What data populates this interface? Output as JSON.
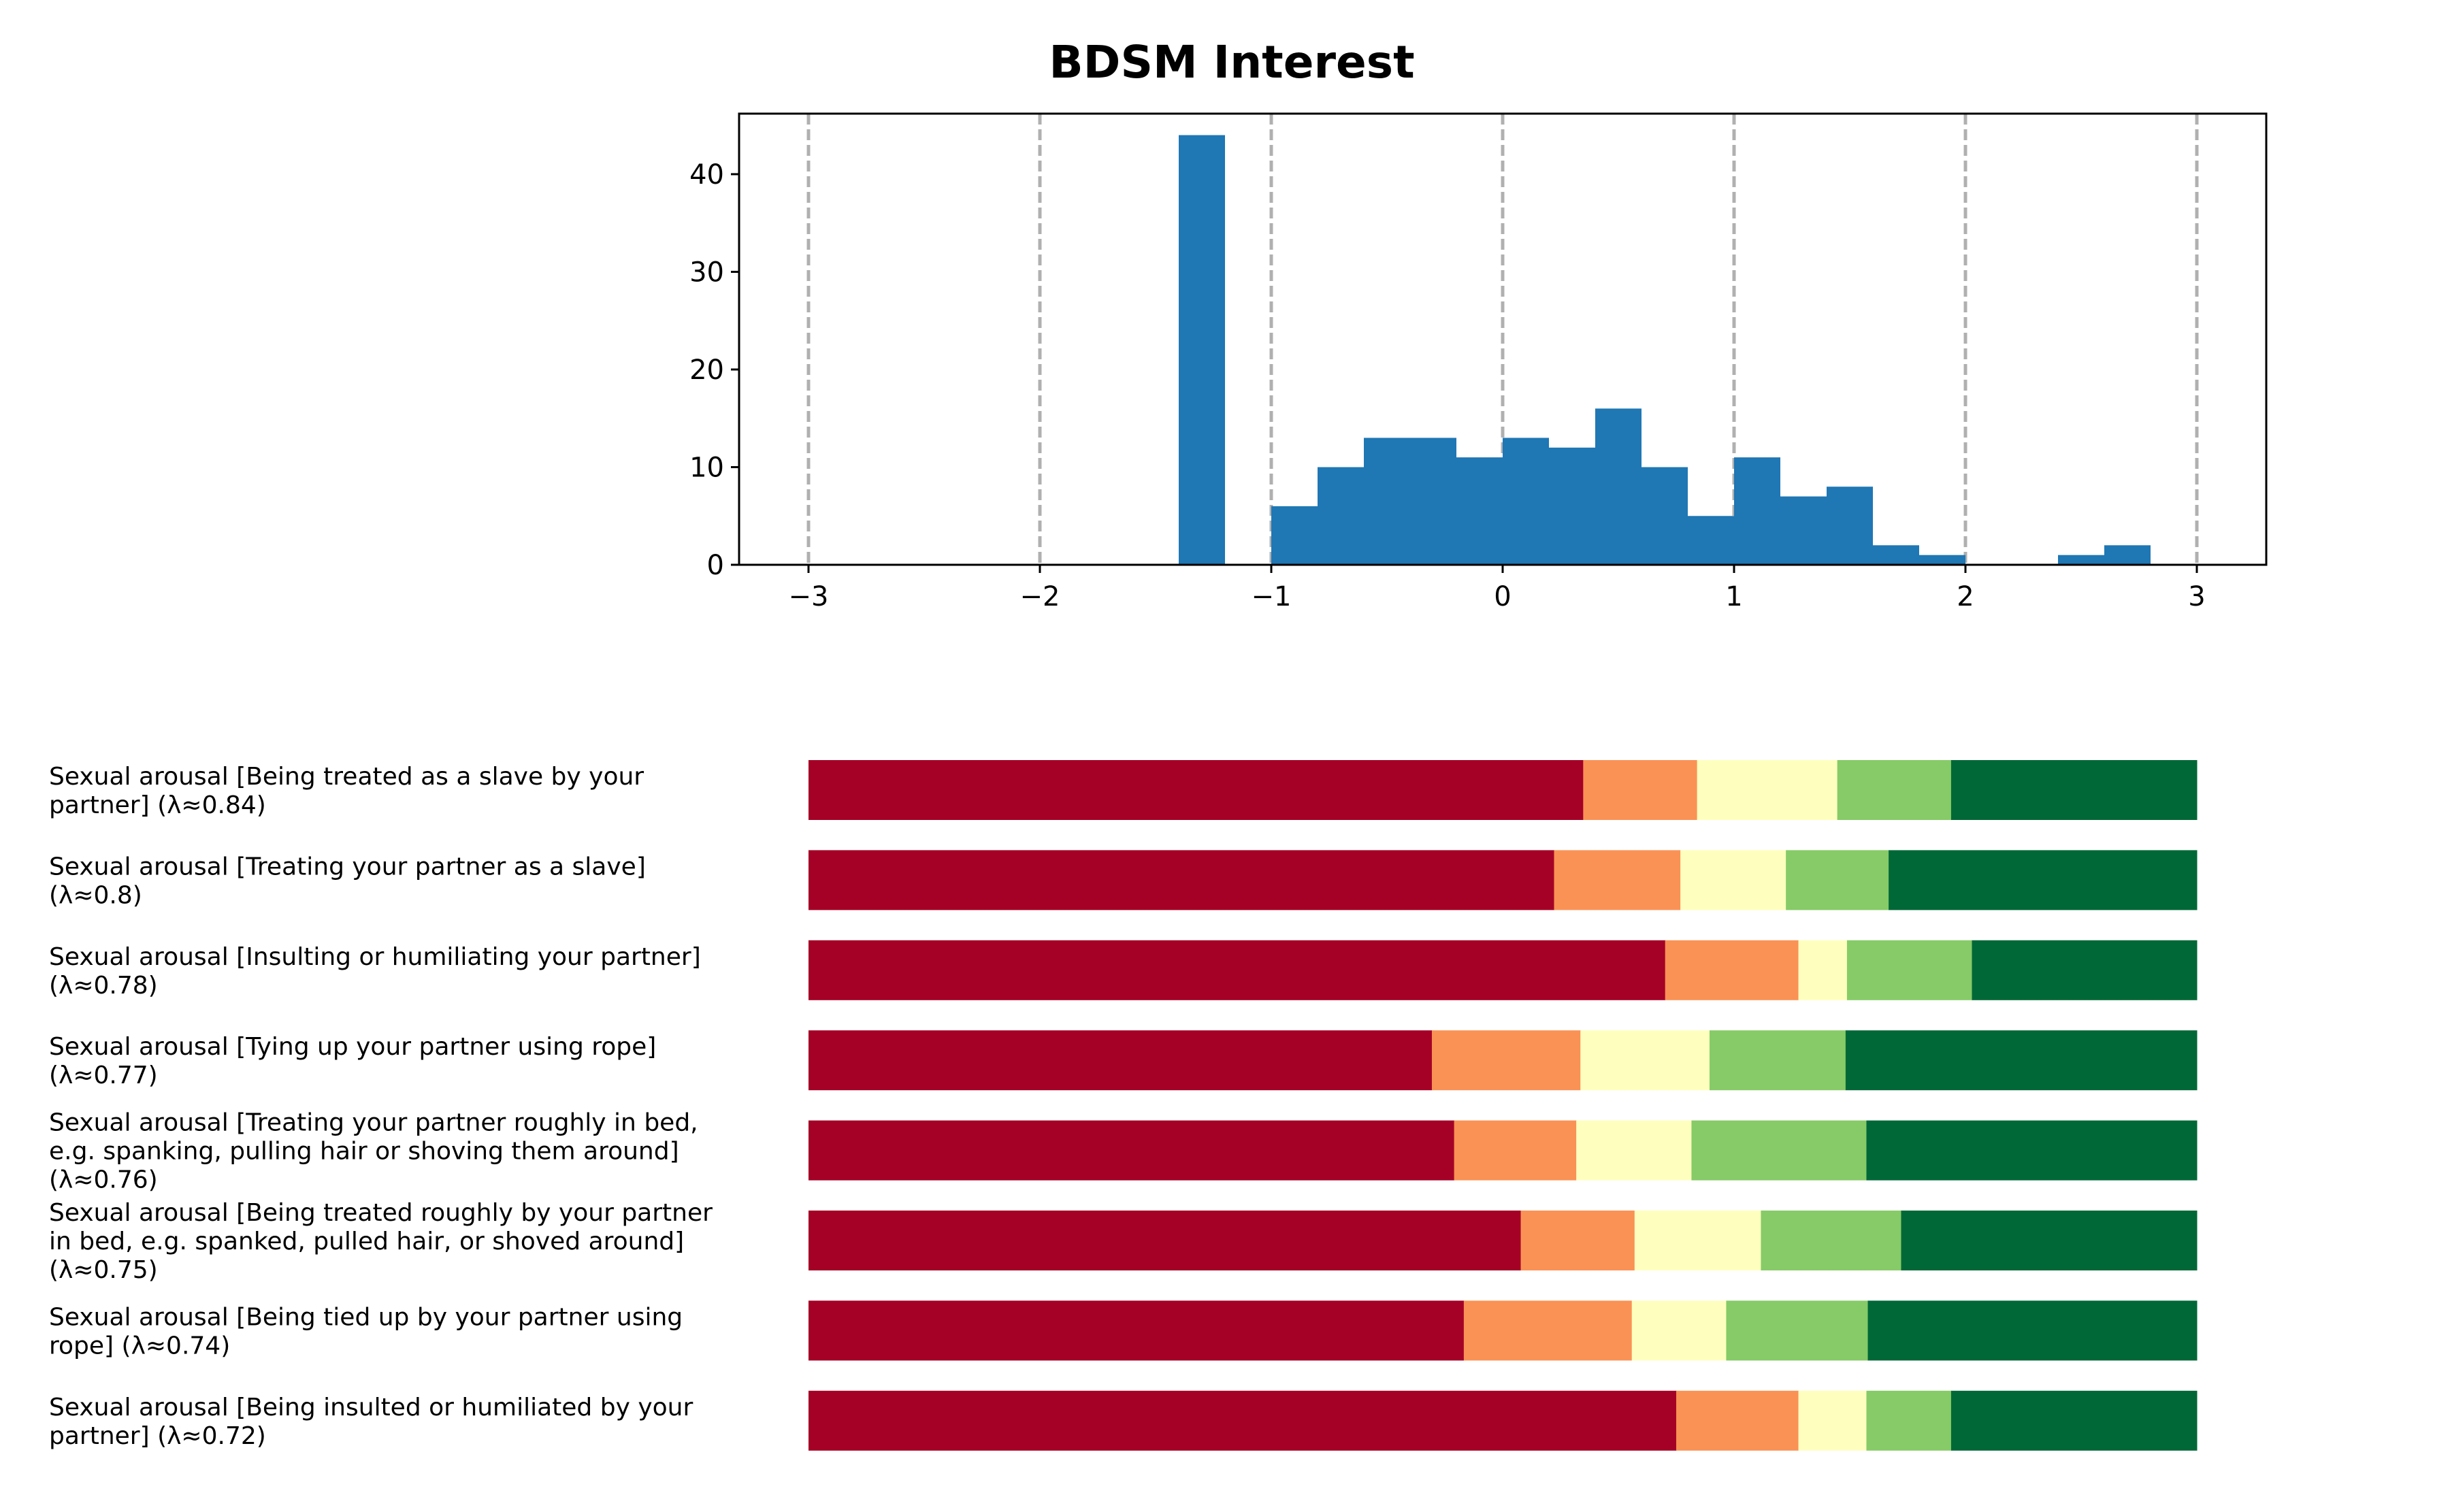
{
  "chart_data": [
    {
      "type": "bar",
      "title": "BDSM Interest",
      "xlabel": "",
      "ylabel": "",
      "xlim": [
        -3.3,
        3.3
      ],
      "ylim": [
        0,
        46.2
      ],
      "xticks": [
        -3,
        -2,
        -1,
        0,
        1,
        2,
        3
      ],
      "xtick_labels": [
        "−3",
        "−2",
        "−1",
        "0",
        "1",
        "2",
        "3"
      ],
      "yticks": [
        0,
        10,
        20,
        30,
        40
      ],
      "ytick_labels": [
        "0",
        "10",
        "20",
        "30",
        "40"
      ],
      "grid": "vertical dashed lines at x ticks",
      "bin_width": 0.2,
      "bin_starts": [
        -1.4,
        -1.0,
        -0.8,
        -0.6,
        -0.4,
        -0.2,
        0.0,
        0.2,
        0.4,
        0.6,
        0.8,
        1.0,
        1.2,
        1.4,
        1.6,
        1.8,
        2.4,
        2.6
      ],
      "counts": [
        44,
        6,
        10,
        13,
        13,
        11,
        13,
        12,
        16,
        10,
        5,
        11,
        7,
        8,
        2,
        1,
        1,
        2
      ],
      "bar_color": "#1f77b4",
      "grid_color": "#b0b0b0"
    },
    {
      "type": "bar",
      "orientation": "horizontal-stacked",
      "xlim": [
        -3,
        3
      ],
      "segment_colors": [
        "#a50026",
        "#fa9255",
        "#feffbe",
        "#86cb67",
        "#006837"
      ],
      "rows": [
        {
          "label_lines": [
            "Sexual arousal [Being treated as a slave by your",
            "partner] (λ≈0.84)"
          ],
          "shares": [
            0.558,
            0.082,
            0.101,
            0.082,
            0.177
          ]
        },
        {
          "label_lines": [
            "Sexual arousal [Treating your partner as a slave]",
            "(λ≈0.8)"
          ],
          "shares": [
            0.537,
            0.091,
            0.076,
            0.074,
            0.222
          ]
        },
        {
          "label_lines": [
            "Sexual arousal [Insulting or humiliating your partner]",
            "(λ≈0.78)"
          ],
          "shares": [
            0.617,
            0.096,
            0.035,
            0.09,
            0.162
          ]
        },
        {
          "label_lines": [
            "Sexual arousal [Tying up your partner using rope]",
            "(λ≈0.77)"
          ],
          "shares": [
            0.449,
            0.107,
            0.093,
            0.098,
            0.253
          ]
        },
        {
          "label_lines": [
            "Sexual arousal [Treating your partner roughly in bed,",
            "e.g. spanking, pulling hair or shoving them around]",
            "(λ≈0.76)"
          ],
          "shares": [
            0.465,
            0.088,
            0.083,
            0.126,
            0.238
          ]
        },
        {
          "label_lines": [
            "Sexual arousal [Being treated roughly by your partner",
            "in bed, e.g. spanked, pulled hair, or shoved around]",
            "(λ≈0.75)"
          ],
          "shares": [
            0.513,
            0.082,
            0.091,
            0.101,
            0.213
          ]
        },
        {
          "label_lines": [
            "Sexual arousal [Being tied up by your partner using",
            "rope] (λ≈0.74)"
          ],
          "shares": [
            0.472,
            0.121,
            0.068,
            0.102,
            0.237
          ]
        },
        {
          "label_lines": [
            "Sexual arousal [Being insulted or humiliated by your",
            "partner] (λ≈0.72)"
          ],
          "shares": [
            0.625,
            0.088,
            0.049,
            0.061,
            0.177
          ]
        }
      ]
    }
  ]
}
